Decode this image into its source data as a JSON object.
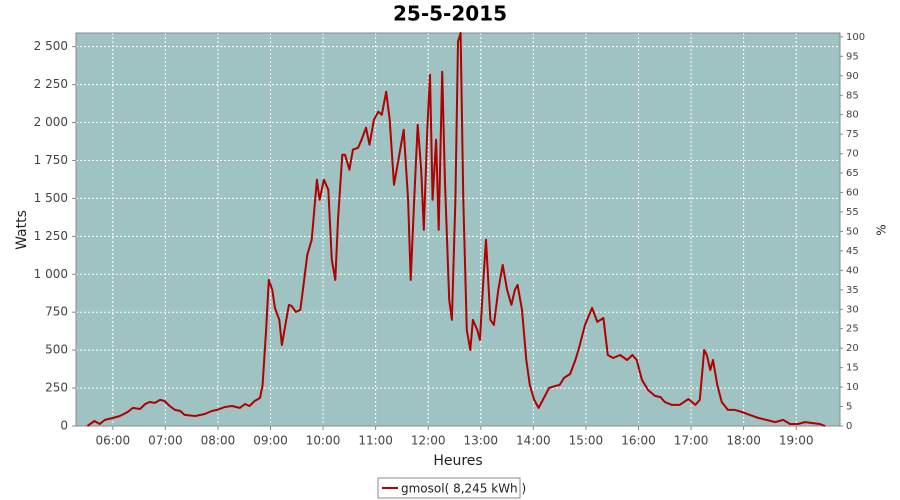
{
  "chart_data": {
    "type": "line",
    "title": "25-5-2015",
    "x_label": "Heures",
    "y_label": "Watts",
    "y2_label": "%",
    "x": [
      "05:31",
      "05:39",
      "05:45",
      "05:51",
      "06:00",
      "06:08",
      "06:17",
      "06:23",
      "06:31",
      "06:37",
      "06:42",
      "06:48",
      "06:54",
      "06:59",
      "07:05",
      "07:11",
      "07:17",
      "07:22",
      "07:34",
      "07:45",
      "07:53",
      "07:59",
      "08:08",
      "08:16",
      "08:25",
      "08:31",
      "08:36",
      "08:42",
      "08:48",
      "08:51",
      "08:55",
      "08:58",
      "09:02",
      "09:05",
      "09:10",
      "09:13",
      "09:16",
      "09:21",
      "09:24",
      "09:29",
      "09:34",
      "09:37",
      "09:42",
      "09:47",
      "09:53",
      "09:56",
      "10:01",
      "10:06",
      "10:10",
      "10:14",
      "10:17",
      "10:22",
      "10:25",
      "10:30",
      "10:34",
      "10:40",
      "10:44",
      "10:49",
      "10:53",
      "10:58",
      "11:03",
      "11:07",
      "11:12",
      "11:16",
      "11:21",
      "11:24",
      "11:28",
      "11:32",
      "11:37",
      "11:40",
      "11:44",
      "11:48",
      "11:52",
      "11:55",
      "11:59",
      "12:02",
      "12:05",
      "12:09",
      "12:12",
      "12:16",
      "12:19",
      "12:24",
      "12:27",
      "12:31",
      "12:34",
      "12:37",
      "12:40",
      "12:44",
      "12:48",
      "12:51",
      "12:56",
      "12:59",
      "13:03",
      "13:06",
      "13:11",
      "13:15",
      "13:20",
      "13:25",
      "13:30",
      "13:35",
      "13:39",
      "13:42",
      "13:47",
      "13:52",
      "13:56",
      "14:01",
      "14:06",
      "14:12",
      "14:18",
      "14:25",
      "14:30",
      "14:35",
      "14:42",
      "14:48",
      "14:53",
      "14:59",
      "15:07",
      "15:13",
      "15:20",
      "15:25",
      "15:31",
      "15:39",
      "15:47",
      "15:53",
      "15:58",
      "16:04",
      "16:11",
      "16:19",
      "16:25",
      "16:30",
      "16:38",
      "16:47",
      "16:57",
      "17:05",
      "17:10",
      "17:15",
      "17:18",
      "17:22",
      "17:25",
      "17:30",
      "17:35",
      "17:42",
      "17:50",
      "17:58",
      "18:07",
      "18:17",
      "18:26",
      "18:36",
      "18:45",
      "18:53",
      "19:02",
      "19:10",
      "19:18",
      "19:27",
      "19:33"
    ],
    "series": [
      {
        "name": "gmosol( 8,245 kWh )",
        "color": "#b00000",
        "values": [
          0,
          33,
          13,
          40,
          53,
          66,
          92,
          119,
          112,
          145,
          158,
          152,
          172,
          165,
          132,
          106,
          99,
          73,
          66,
          79,
          99,
          106,
          125,
          132,
          119,
          145,
          132,
          165,
          185,
          270,
          633,
          963,
          897,
          778,
          699,
          534,
          633,
          798,
          792,
          752,
          765,
          897,
          1128,
          1227,
          1623,
          1491,
          1623,
          1557,
          1095,
          963,
          1359,
          1788,
          1788,
          1689,
          1821,
          1834,
          1887,
          1966,
          1854,
          2018,
          2071,
          2051,
          2203,
          2018,
          1590,
          1689,
          1821,
          1953,
          1491,
          963,
          1491,
          1985,
          1689,
          1293,
          1953,
          2315,
          1491,
          1887,
          1293,
          2335,
          1623,
          831,
          699,
          1491,
          2533,
          2590,
          1491,
          633,
          501,
          699,
          633,
          567,
          963,
          1227,
          699,
          666,
          897,
          1062,
          897,
          798,
          897,
          930,
          765,
          435,
          270,
          172,
          119,
          185,
          251,
          264,
          270,
          317,
          343,
          435,
          534,
          666,
          778,
          686,
          712,
          468,
          448,
          468,
          435,
          468,
          435,
          303,
          237,
          198,
          191,
          158,
          139,
          139,
          178,
          139,
          172,
          501,
          468,
          369,
          435,
          270,
          158,
          106,
          106,
          92,
          73,
          53,
          40,
          26,
          40,
          13,
          13,
          26,
          20,
          13,
          0
        ]
      }
    ],
    "xlim": [
      "05:18",
      "19:50"
    ],
    "xticks": [
      "06:00",
      "07:00",
      "08:00",
      "09:00",
      "10:00",
      "11:00",
      "12:00",
      "13:00",
      "14:00",
      "15:00",
      "16:00",
      "17:00",
      "18:00",
      "19:00"
    ],
    "ylim": [
      0,
      2590
    ],
    "yticks": [
      0,
      250,
      500,
      750,
      {
        "value": 1000,
        "label": "1 000"
      },
      {
        "value": 1250,
        "label": "1 250"
      },
      {
        "value": 1500,
        "label": "1 500"
      },
      {
        "value": 1750,
        "label": "1 750"
      },
      {
        "value": 2000,
        "label": "2 000"
      },
      {
        "value": 2250,
        "label": "2 250"
      },
      {
        "value": 2500,
        "label": "2 500"
      }
    ],
    "y2lim": [
      0,
      101
    ],
    "y2ticks": [
      0,
      5,
      10,
      15,
      20,
      25,
      30,
      35,
      40,
      45,
      50,
      55,
      60,
      65,
      70,
      75,
      80,
      85,
      90,
      95,
      100
    ],
    "grid": true,
    "background": "#9fc3c3",
    "legend": "bottom"
  }
}
